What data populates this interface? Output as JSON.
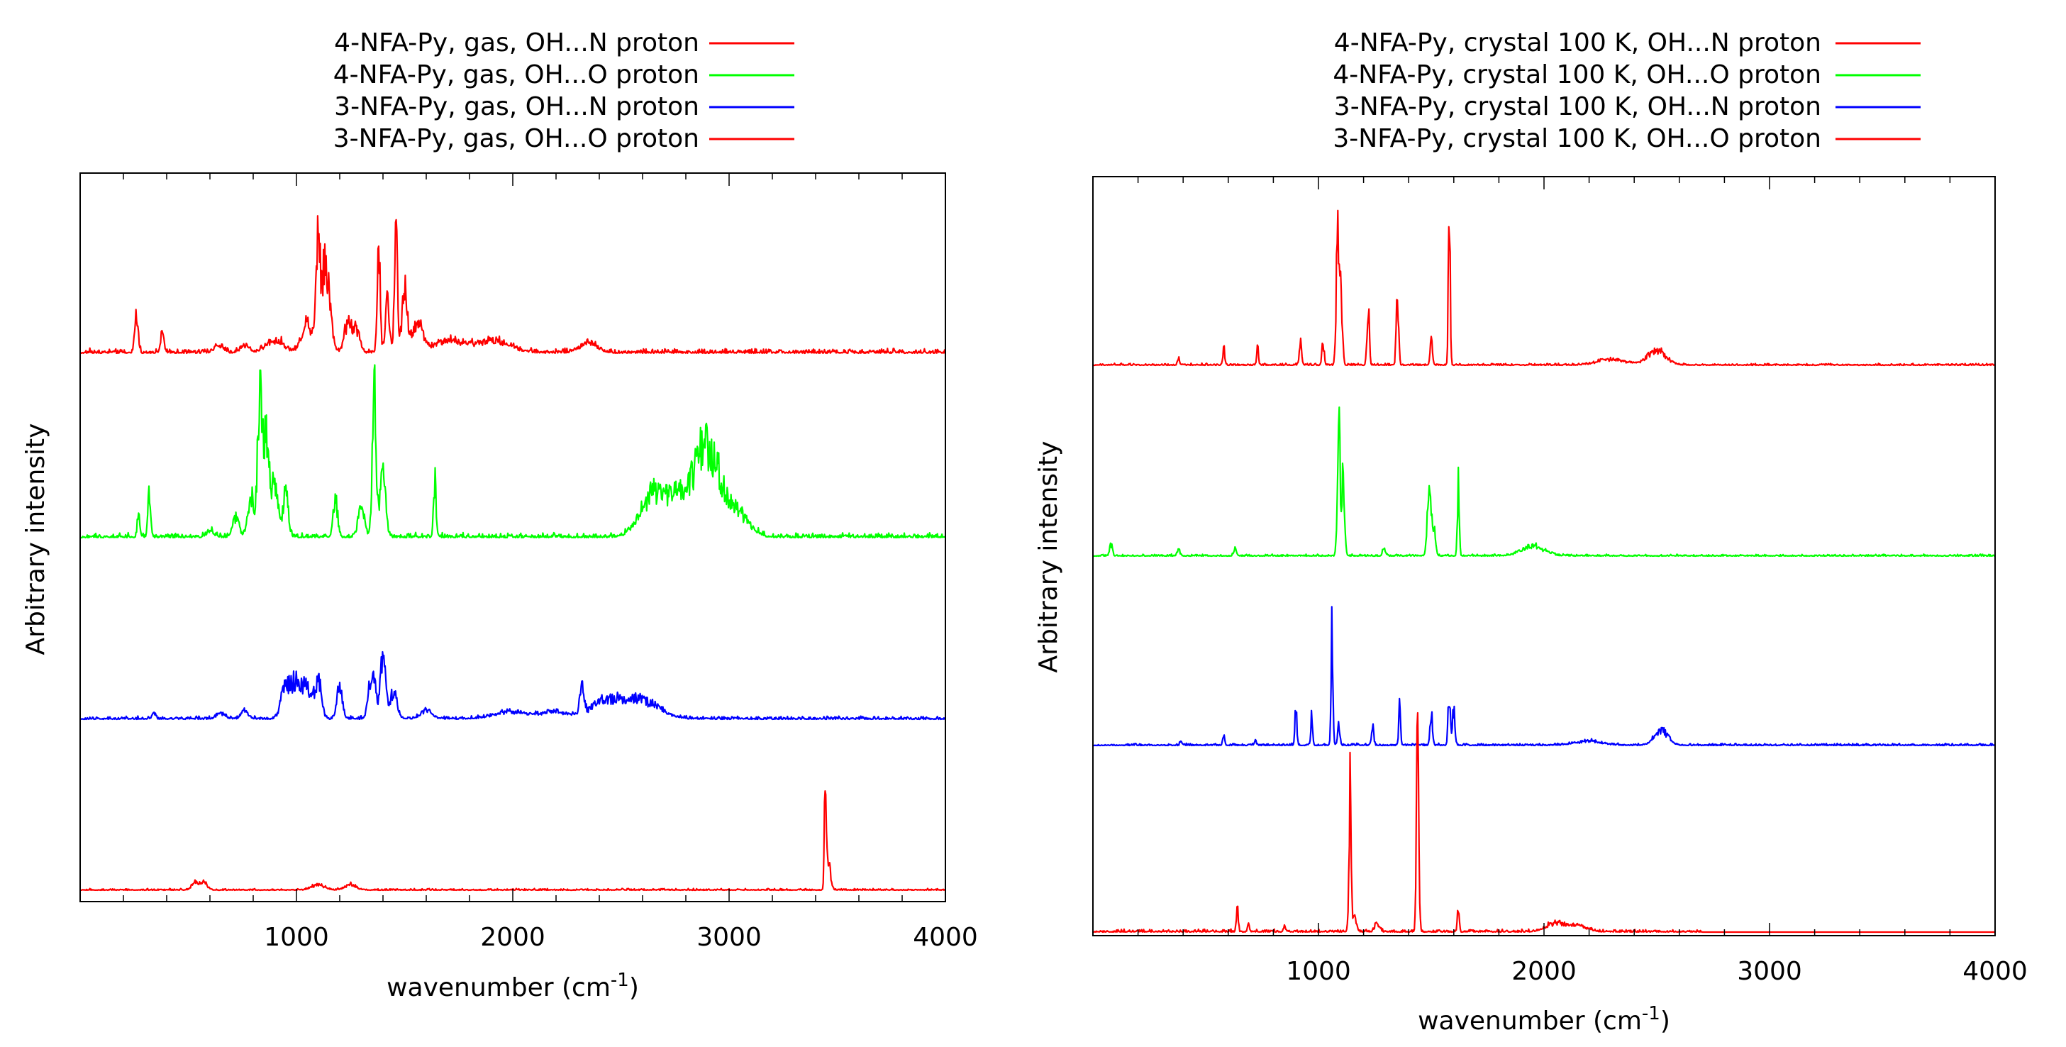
{
  "chart_data": [
    {
      "type": "line",
      "panel": "left",
      "xlabel": "wavenumber (cm",
      "xlabel_sup": "-1",
      "xlabel_tail": ")",
      "ylabel": "Arbitrary intensity",
      "xlim": [
        0,
        4000
      ],
      "xticks": [
        1000,
        2000,
        3000,
        4000
      ],
      "xtick_labels": [
        "1000",
        "2000",
        "3000",
        "4000"
      ],
      "yticks_shown": false,
      "legend_position": "top",
      "series": [
        {
          "name": "4-NFA-Py, gas, OH...N proton",
          "color": "#ff0000",
          "noise": 0.035,
          "baseline_tail": 4000,
          "peaks": [
            [
              260,
              0.3,
              8
            ],
            [
              380,
              0.15,
              8
            ],
            [
              640,
              0.06,
              20
            ],
            [
              760,
              0.06,
              20
            ],
            [
              900,
              0.1,
              40
            ],
            [
              1050,
              0.25,
              25
            ],
            [
              1100,
              0.9,
              10
            ],
            [
              1130,
              0.6,
              12
            ],
            [
              1150,
              0.4,
              15
            ],
            [
              1240,
              0.25,
              18
            ],
            [
              1280,
              0.18,
              15
            ],
            [
              1380,
              0.85,
              7
            ],
            [
              1420,
              0.4,
              10
            ],
            [
              1460,
              1.0,
              7
            ],
            [
              1500,
              0.55,
              12
            ],
            [
              1560,
              0.25,
              25
            ],
            [
              1700,
              0.1,
              60
            ],
            [
              1900,
              0.1,
              80
            ],
            [
              2350,
              0.08,
              40
            ]
          ]
        },
        {
          "name": "4-NFA-Py, gas, OH...O proton",
          "color": "#00ff00",
          "noise": 0.03,
          "baseline_tail": 4000,
          "peaks": [
            [
              270,
              0.15,
              6
            ],
            [
              320,
              0.32,
              6
            ],
            [
              600,
              0.05,
              15
            ],
            [
              720,
              0.14,
              15
            ],
            [
              790,
              0.3,
              15
            ],
            [
              830,
              1.0,
              10
            ],
            [
              860,
              0.7,
              14
            ],
            [
              900,
              0.4,
              15
            ],
            [
              950,
              0.3,
              12
            ],
            [
              1180,
              0.28,
              10
            ],
            [
              1300,
              0.2,
              15
            ],
            [
              1360,
              1.0,
              9
            ],
            [
              1400,
              0.5,
              12
            ],
            [
              1640,
              0.4,
              6
            ],
            [
              2650,
              0.3,
              60
            ],
            [
              2780,
              0.3,
              50
            ],
            [
              2870,
              0.45,
              35
            ],
            [
              2930,
              0.4,
              40
            ],
            [
              3020,
              0.2,
              60
            ]
          ]
        },
        {
          "name": "3-NFA-Py, gas, OH...N proton",
          "color": "#0000ff",
          "noise": 0.04,
          "baseline_tail": 4000,
          "peaks": [
            [
              340,
              0.08,
              8
            ],
            [
              650,
              0.08,
              20
            ],
            [
              760,
              0.12,
              15
            ],
            [
              950,
              0.5,
              20
            ],
            [
              1000,
              0.55,
              20
            ],
            [
              1050,
              0.45,
              20
            ],
            [
              1100,
              0.55,
              15
            ],
            [
              1200,
              0.5,
              12
            ],
            [
              1350,
              0.7,
              15
            ],
            [
              1400,
              0.9,
              12
            ],
            [
              1450,
              0.4,
              15
            ],
            [
              1600,
              0.12,
              25
            ],
            [
              2000,
              0.1,
              80
            ],
            [
              2200,
              0.1,
              60
            ],
            [
              2320,
              0.4,
              10
            ],
            [
              2420,
              0.25,
              60
            ],
            [
              2550,
              0.25,
              60
            ],
            [
              2650,
              0.15,
              60
            ]
          ]
        },
        {
          "name": "3-NFA-Py, gas, OH...O proton",
          "color": "#ff0000",
          "noise": 0.012,
          "baseline_tail": 4000,
          "peaks": [
            [
              530,
              0.06,
              15
            ],
            [
              570,
              0.06,
              15
            ],
            [
              1100,
              0.04,
              30
            ],
            [
              1250,
              0.04,
              25
            ],
            [
              3445,
              1.0,
              4
            ],
            [
              3460,
              0.2,
              10
            ]
          ]
        }
      ],
      "offsets": [
        3,
        2,
        1,
        0
      ]
    },
    {
      "type": "line",
      "panel": "right",
      "xlabel": "wavenumber (cm",
      "xlabel_sup": "-1",
      "xlabel_tail": ")",
      "ylabel": "Arbitrary intensity",
      "xlim": [
        0,
        4000
      ],
      "xticks": [
        1000,
        2000,
        3000,
        4000
      ],
      "xtick_labels": [
        "1000",
        "2000",
        "3000",
        "4000"
      ],
      "yticks_shown": false,
      "legend_position": "top",
      "series": [
        {
          "name": "4-NFA-Py, crystal 100 K, OH...N proton",
          "color": "#ff0000",
          "noise": 0.012,
          "baseline_tail": 4000,
          "peaks": [
            [
              380,
              0.05,
              4
            ],
            [
              580,
              0.12,
              4
            ],
            [
              730,
              0.12,
              4
            ],
            [
              920,
              0.15,
              5
            ],
            [
              1020,
              0.15,
              5
            ],
            [
              1085,
              0.88,
              6
            ],
            [
              1100,
              0.45,
              6
            ],
            [
              1220,
              0.42,
              5
            ],
            [
              1350,
              0.5,
              5
            ],
            [
              1500,
              0.18,
              5
            ],
            [
              1580,
              1.0,
              4
            ],
            [
              2300,
              0.04,
              60
            ],
            [
              2500,
              0.1,
              40
            ]
          ]
        },
        {
          "name": "4-NFA-Py, crystal 100 K, OH...O proton",
          "color": "#00ff00",
          "noise": 0.012,
          "baseline_tail": 4000,
          "peaks": [
            [
              80,
              0.08,
              6
            ],
            [
              380,
              0.04,
              6
            ],
            [
              630,
              0.05,
              6
            ],
            [
              1090,
              0.9,
              6
            ],
            [
              1110,
              0.6,
              6
            ],
            [
              1290,
              0.06,
              6
            ],
            [
              1490,
              0.45,
              8
            ],
            [
              1510,
              0.2,
              8
            ],
            [
              1620,
              0.5,
              4
            ],
            [
              1950,
              0.07,
              50
            ]
          ]
        },
        {
          "name": "3-NFA-Py, crystal 100 K, OH...N proton",
          "color": "#0000ff",
          "noise": 0.015,
          "baseline_tail": 4000,
          "peaks": [
            [
              390,
              0.03,
              4
            ],
            [
              580,
              0.08,
              4
            ],
            [
              720,
              0.04,
              4
            ],
            [
              900,
              0.3,
              4
            ],
            [
              970,
              0.22,
              4
            ],
            [
              1060,
              0.95,
              4
            ],
            [
              1090,
              0.15,
              5
            ],
            [
              1240,
              0.15,
              5
            ],
            [
              1360,
              0.32,
              4
            ],
            [
              1500,
              0.25,
              5
            ],
            [
              1580,
              0.4,
              5
            ],
            [
              1600,
              0.3,
              5
            ],
            [
              2200,
              0.03,
              60
            ],
            [
              2520,
              0.12,
              30
            ]
          ]
        },
        {
          "name": "3-NFA-Py, crystal 100 K, OH...O proton",
          "color": "#ff0000",
          "noise": 0.012,
          "baseline_tail": 2700,
          "peaks": [
            [
              640,
              0.12,
              4
            ],
            [
              690,
              0.04,
              4
            ],
            [
              850,
              0.03,
              4
            ],
            [
              1140,
              0.7,
              5
            ],
            [
              1160,
              0.08,
              8
            ],
            [
              1260,
              0.04,
              10
            ],
            [
              1440,
              1.0,
              5
            ],
            [
              1620,
              0.12,
              4
            ],
            [
              2050,
              0.04,
              40
            ],
            [
              2150,
              0.03,
              40
            ]
          ]
        }
      ],
      "offsets": [
        3,
        2,
        1,
        0
      ]
    }
  ]
}
